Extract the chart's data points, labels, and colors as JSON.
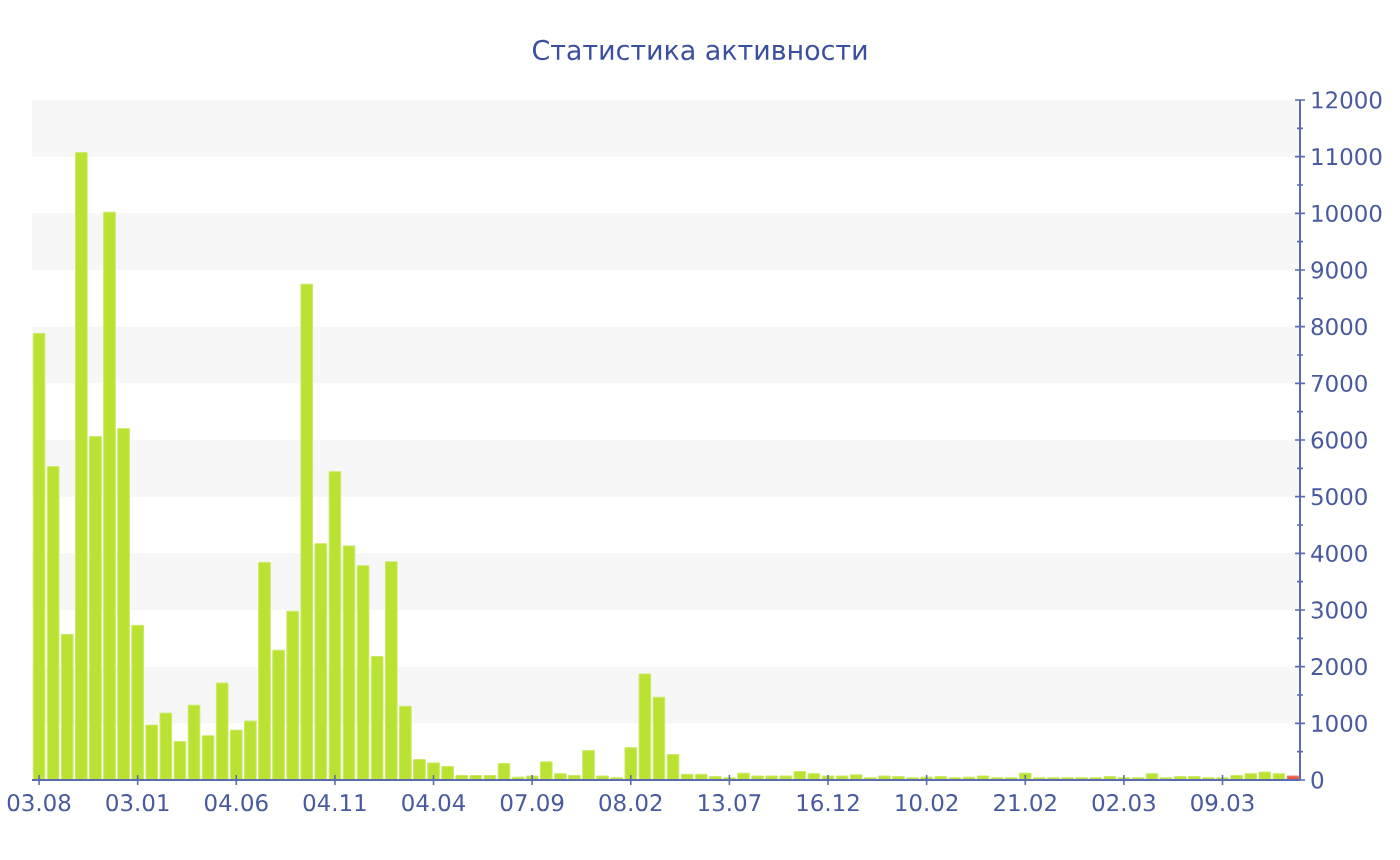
{
  "chart_data": {
    "type": "bar",
    "title": "Статистика активности",
    "categories": [
      "03.08",
      null,
      null,
      null,
      null,
      null,
      null,
      "03.01",
      null,
      null,
      null,
      null,
      null,
      null,
      "04.06",
      null,
      null,
      null,
      null,
      null,
      null,
      "04.11",
      null,
      null,
      null,
      null,
      null,
      null,
      "04.04",
      null,
      null,
      null,
      null,
      null,
      null,
      "07.09",
      null,
      null,
      null,
      null,
      null,
      null,
      "08.02",
      null,
      null,
      null,
      null,
      null,
      null,
      "13.07",
      null,
      null,
      null,
      null,
      null,
      null,
      "16.12",
      null,
      null,
      null,
      null,
      null,
      null,
      "10.02",
      null,
      null,
      null,
      null,
      null,
      null,
      "21.02",
      null,
      null,
      null,
      null,
      null,
      null,
      "02.03",
      null,
      null,
      null,
      null,
      null,
      null,
      "09.03",
      null,
      null,
      null,
      null,
      null
    ],
    "values": [
      7880,
      5530,
      2570,
      11070,
      6060,
      10020,
      6200,
      2730,
      970,
      1180,
      680,
      1320,
      780,
      1710,
      880,
      1040,
      3840,
      2290,
      2980,
      8750,
      4170,
      5440,
      4130,
      3780,
      2180,
      3850,
      1300,
      360,
      300,
      240,
      80,
      80,
      80,
      290,
      50,
      70,
      320,
      110,
      80,
      520,
      70,
      40,
      570,
      1870,
      1460,
      450,
      100,
      100,
      60,
      40,
      120,
      70,
      70,
      70,
      150,
      110,
      70,
      70,
      90,
      40,
      70,
      60,
      40,
      50,
      60,
      40,
      50,
      70,
      40,
      40,
      120,
      40,
      40,
      40,
      40,
      40,
      60,
      40,
      40,
      110,
      40,
      60,
      60,
      40,
      40,
      80,
      110,
      140,
      110,
      70
    ],
    "colors": [
      "#bae233",
      "#bae233",
      "#bae233",
      "#bae233",
      "#bae233",
      "#bae233",
      "#bae233",
      "#bae233",
      "#bae233",
      "#bae233",
      "#bae233",
      "#bae233",
      "#bae233",
      "#bae233",
      "#bae233",
      "#bae233",
      "#bae233",
      "#bae233",
      "#bae233",
      "#bae233",
      "#bae233",
      "#bae233",
      "#bae233",
      "#bae233",
      "#bae233",
      "#bae233",
      "#bae233",
      "#bae233",
      "#bae233",
      "#bae233",
      "#bae233",
      "#bae233",
      "#bae233",
      "#bae233",
      "#bae233",
      "#bae233",
      "#bae233",
      "#bae233",
      "#bae233",
      "#bae233",
      "#bae233",
      "#bae233",
      "#bae233",
      "#bae233",
      "#bae233",
      "#bae233",
      "#bae233",
      "#bae233",
      "#bae233",
      "#bae233",
      "#bae233",
      "#bae233",
      "#bae233",
      "#bae233",
      "#bae233",
      "#bae233",
      "#bae233",
      "#bae233",
      "#bae233",
      "#bae233",
      "#bae233",
      "#bae233",
      "#bae233",
      "#bae233",
      "#bae233",
      "#bae233",
      "#bae233",
      "#bae233",
      "#bae233",
      "#bae233",
      "#bae233",
      "#bae233",
      "#bae233",
      "#bae233",
      "#bae233",
      "#bae233",
      "#bae233",
      "#bae233",
      "#bae233",
      "#bae233",
      "#bae233",
      "#bae233",
      "#bae233",
      "#bae233",
      "#bae233",
      "#bae233",
      "#bae233",
      "#bae233",
      "#bae233",
      "#e9573f"
    ],
    "ylim": [
      0,
      12000
    ],
    "yticks": [
      0,
      1000,
      2000,
      3000,
      4000,
      5000,
      6000,
      7000,
      8000,
      9000,
      10000,
      11000,
      12000
    ],
    "bands": [
      {
        "axis": "y",
        "from": 1000,
        "to": 2000,
        "color": "#f7f7f7"
      },
      {
        "axis": "y",
        "from": 3000,
        "to": 4000,
        "color": "#f7f7f7"
      },
      {
        "axis": "y",
        "from": 5000,
        "to": 6000,
        "color": "#f7f7f7"
      },
      {
        "axis": "y",
        "from": 7000,
        "to": 8000,
        "color": "#f7f7f7"
      },
      {
        "axis": "y",
        "from": 9000,
        "to": 10000,
        "color": "#f7f7f7"
      },
      {
        "axis": "y",
        "from": 11000,
        "to": 12000,
        "color": "#f7f7f7"
      }
    ]
  }
}
